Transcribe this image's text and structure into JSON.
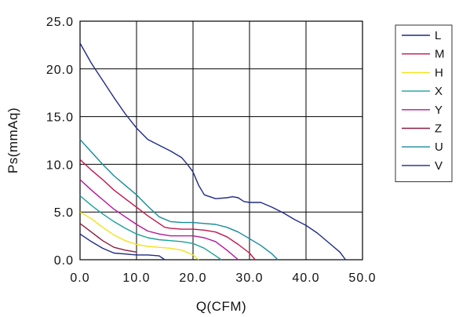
{
  "chart_data": {
    "type": "line",
    "title": "",
    "xlabel": "Q(CFM)",
    "ylabel": "Ps(mmAq)",
    "xlim": [
      0,
      50
    ],
    "ylim": [
      0,
      25
    ],
    "x_ticks": [
      "0.0",
      "10.0",
      "20.0",
      "30.0",
      "40.0",
      "50.0"
    ],
    "y_ticks": [
      "0.0",
      "5.0",
      "10.0",
      "15.0",
      "20.0",
      "25.0"
    ],
    "grid": true,
    "legend_position": "right",
    "series": [
      {
        "name": "L",
        "color": "#1f2a86",
        "x": [
          0,
          2,
          4,
          6,
          8,
          10,
          12,
          14,
          16,
          18,
          19,
          20,
          21,
          22,
          24,
          26,
          27,
          28,
          29,
          30,
          32,
          34,
          36,
          38,
          40,
          42,
          44,
          46,
          47
        ],
        "y": [
          22.7,
          20.6,
          18.8,
          17.0,
          15.3,
          13.8,
          12.6,
          12.0,
          11.4,
          10.7,
          10.0,
          9.2,
          7.8,
          6.8,
          6.4,
          6.5,
          6.6,
          6.5,
          6.1,
          6.0,
          6.0,
          5.5,
          4.9,
          4.2,
          3.6,
          2.8,
          1.8,
          0.8,
          0.0
        ]
      },
      {
        "name": "M",
        "color": "#c0164b",
        "x": [
          0,
          2,
          4,
          6,
          8,
          10,
          12,
          14,
          15,
          16,
          18,
          20,
          22,
          24,
          26,
          28,
          30,
          31
        ],
        "y": [
          10.5,
          9.4,
          8.4,
          7.3,
          6.4,
          5.5,
          4.6,
          3.8,
          3.4,
          3.3,
          3.2,
          3.2,
          3.1,
          2.9,
          2.4,
          1.6,
          0.7,
          0.0
        ]
      },
      {
        "name": "H",
        "color": "#f2e21b",
        "x": [
          0,
          2,
          4,
          6,
          8,
          10,
          12,
          14,
          16,
          18,
          20,
          21
        ],
        "y": [
          5.0,
          4.3,
          3.4,
          2.6,
          2.0,
          1.6,
          1.4,
          1.3,
          1.2,
          1.0,
          0.5,
          0.0
        ]
      },
      {
        "name": "X",
        "color": "#1aa099",
        "x": [
          0,
          2,
          4,
          6,
          8,
          10,
          12,
          14,
          16,
          18,
          20,
          22,
          24,
          25
        ],
        "y": [
          6.7,
          5.7,
          4.8,
          4.0,
          3.3,
          2.7,
          2.3,
          2.1,
          2.0,
          1.9,
          1.7,
          1.2,
          0.4,
          0.0
        ]
      },
      {
        "name": "Y",
        "color": "#b5169a",
        "x": [
          0,
          2,
          4,
          6,
          8,
          10,
          12,
          14,
          16,
          18,
          20,
          22,
          24,
          26,
          28
        ],
        "y": [
          8.4,
          7.3,
          6.3,
          5.3,
          4.5,
          3.7,
          3.0,
          2.7,
          2.5,
          2.5,
          2.5,
          2.3,
          1.9,
          1.0,
          0.0
        ]
      },
      {
        "name": "Z",
        "color": "#8b1e3f",
        "x": [
          0,
          2,
          4,
          6,
          8,
          10
        ],
        "y": [
          3.8,
          2.9,
          2.0,
          1.3,
          1.0,
          0.8
        ]
      },
      {
        "name": "U",
        "color": "#168a9a",
        "x": [
          0,
          2,
          4,
          6,
          8,
          10,
          12,
          14,
          16,
          18,
          20,
          22,
          24,
          26,
          28,
          30,
          32,
          34,
          35
        ],
        "y": [
          12.6,
          11.3,
          10.0,
          8.8,
          7.8,
          6.8,
          5.6,
          4.5,
          4.0,
          3.9,
          3.9,
          3.8,
          3.7,
          3.4,
          2.9,
          2.2,
          1.5,
          0.6,
          0.0
        ]
      },
      {
        "name": "V",
        "color": "#1f2a86",
        "x": [
          0,
          2,
          4,
          6,
          8,
          10,
          12,
          14,
          15
        ],
        "y": [
          2.7,
          1.9,
          1.2,
          0.7,
          0.6,
          0.5,
          0.5,
          0.4,
          0.0
        ]
      }
    ]
  }
}
